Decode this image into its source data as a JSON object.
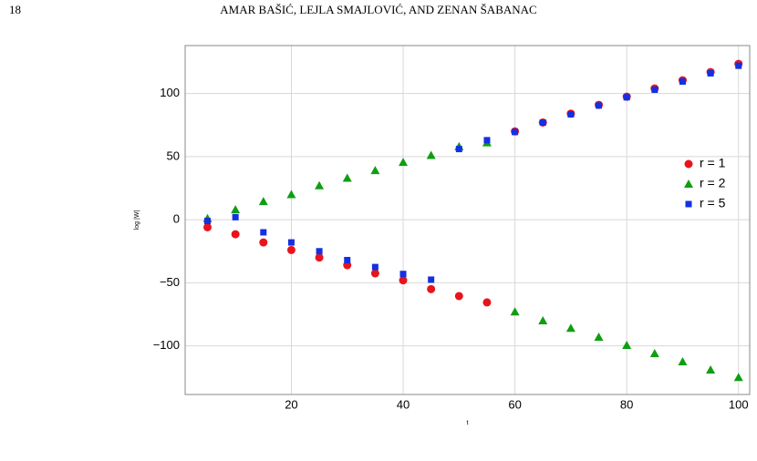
{
  "header": {
    "page_number": "18",
    "authors": "AMAR BAŠIĆ, LEJLA SMAJLOVIĆ, AND ZENAN ŠABANAC"
  },
  "chart_data": {
    "type": "scatter",
    "x_label": "t",
    "y_label": "log |W|",
    "x": [
      5,
      10,
      15,
      20,
      25,
      30,
      35,
      40,
      45,
      50,
      55,
      60,
      65,
      70,
      75,
      80,
      85,
      90,
      95,
      100
    ],
    "series": [
      {
        "name": "r = 1",
        "color": "#e8141c",
        "marker": "circle",
        "values": [
          -6,
          -11.5,
          -18,
          -24,
          -30,
          -36,
          -42.5,
          -48,
          -55,
          -60.5,
          -65.5,
          70,
          77,
          84,
          91,
          97.5,
          104,
          110.5,
          117,
          123.5
        ]
      },
      {
        "name": "r = 2",
        "color": "#0f9e12",
        "marker": "triangle",
        "values": [
          1,
          8,
          14.5,
          20,
          27,
          33,
          39,
          45.5,
          51,
          58,
          61,
          -73,
          -80,
          -86,
          -93,
          -99.5,
          -106,
          -112.5,
          -119,
          -125
        ]
      },
      {
        "name": "r = 5",
        "color": "#1430e0",
        "marker": "square",
        "values": [
          -1,
          2,
          -10,
          -18,
          -25,
          -32,
          -37.5,
          -43,
          -47.5,
          56,
          63,
          69.5,
          77,
          83.5,
          90.5,
          97,
          103,
          109.5,
          116,
          122
        ]
      }
    ],
    "xlim": [
      1,
      102
    ],
    "ylim": [
      -138.5,
      138
    ],
    "xticks": [
      20,
      40,
      60,
      80,
      100
    ],
    "yticks": [
      {
        "value": -100,
        "label": "−100"
      },
      {
        "value": -50,
        "label": "−50"
      },
      0,
      50,
      100
    ],
    "grid": true,
    "legend": "right"
  }
}
